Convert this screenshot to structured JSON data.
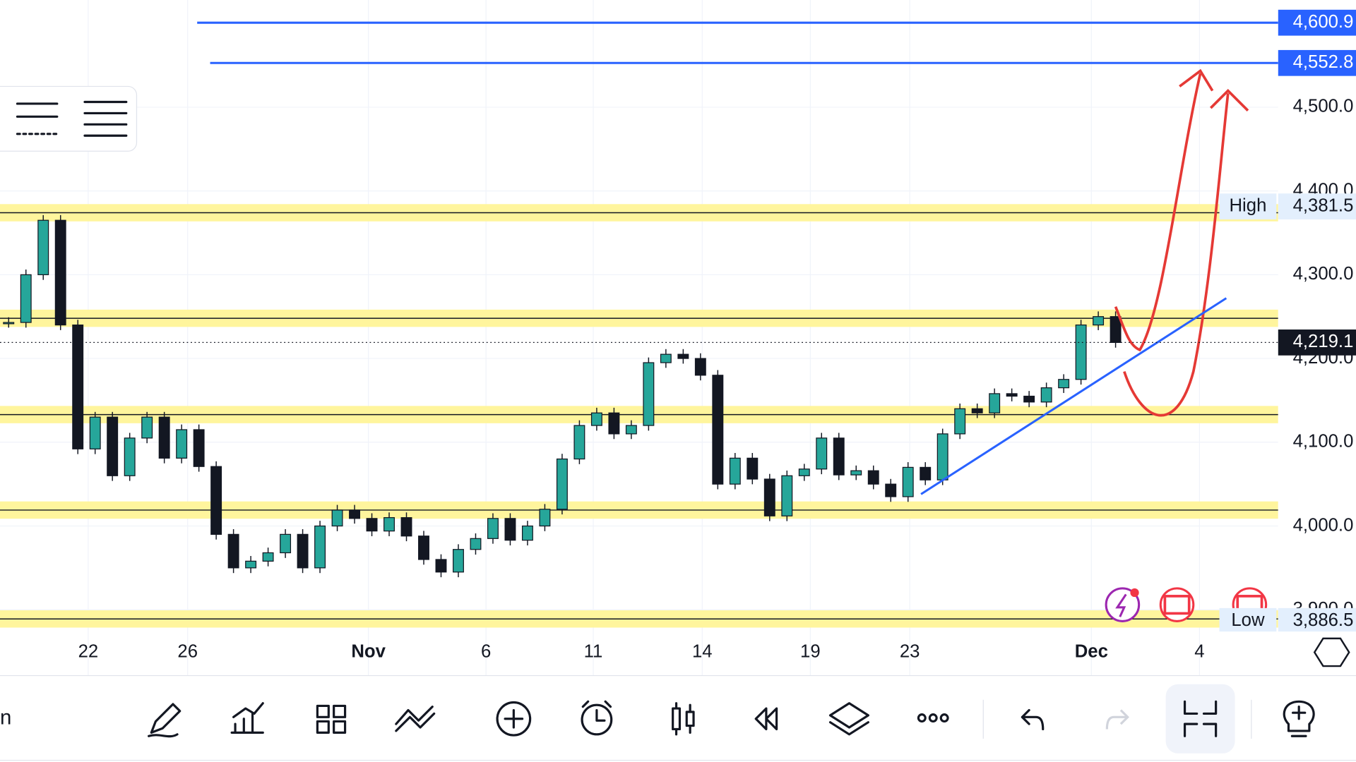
{
  "chart_data": {
    "type": "candlestick",
    "values": [
      4243,
      4300,
      4365,
      4240,
      4092,
      4130,
      4060,
      4105,
      4130,
      4081,
      4115,
      4071,
      3990,
      3950,
      3958,
      3968,
      3990,
      3950,
      4000,
      4019,
      4009,
      3994,
      4010,
      3988,
      3960,
      3945,
      3972,
      3985,
      4009,
      3983,
      4000,
      4020,
      4080,
      4120,
      4135,
      4110,
      4120,
      4195,
      4205,
      4200,
      4180,
      4050,
      4081,
      4056,
      4012,
      4060,
      4068,
      4105,
      4061,
      4066,
      4050,
      4035,
      4070,
      4055,
      4110,
      4140,
      4135,
      4158,
      4155,
      4148,
      4165,
      4175,
      4240,
      4250,
      4219.1
    ],
    "up_color": "#26a69a",
    "down_color": "#131722",
    "xlim": [
      -0.5,
      73.4
    ],
    "xticks": [
      {
        "value": 4.6,
        "label": "22"
      },
      {
        "value": 10.35,
        "label": "26"
      },
      {
        "value": 20.8,
        "label": "Nov"
      },
      {
        "value": 27.6,
        "label": "6"
      },
      {
        "value": 33.8,
        "label": "11"
      },
      {
        "value": 40.1,
        "label": "14"
      },
      {
        "value": 46.35,
        "label": "19"
      },
      {
        "value": 52.1,
        "label": "23"
      },
      {
        "value": 62.6,
        "label": "Dec"
      },
      {
        "value": 68.85,
        "label": "4"
      }
    ],
    "ylim": [
      3875,
      4628
    ],
    "yticks": [
      {
        "value": 4500,
        "label": "4,500.0"
      },
      {
        "value": 4400,
        "label": "4,400.0"
      },
      {
        "value": 4300,
        "label": "4,300.0"
      },
      {
        "value": 4200,
        "label": "4,200.0"
      },
      {
        "value": 4100,
        "label": "4,100.0"
      },
      {
        "value": 4000,
        "label": "4,000.0"
      },
      {
        "value": 3900,
        "label": "3,900.0"
      }
    ],
    "grid": true,
    "zones": [
      4374,
      4248,
      4133,
      4019,
      3889
    ],
    "zone_color": "#fff59d",
    "rays": [
      {
        "value": 4600.9,
        "label": "4,600.9",
        "start": 10.9
      },
      {
        "value": 4552.8,
        "label": "4,552.8",
        "start": 11.65
      }
    ],
    "ray_color": "#2962ff",
    "trendline": {
      "x": [
        52.75,
        70.4
      ],
      "y": [
        4038,
        4272
      ],
      "color": "#2962ff"
    },
    "high": {
      "tag": "High",
      "value": 4381.5,
      "label": "4,381.5"
    },
    "low": {
      "tag": "Low",
      "value": 3886.5,
      "label": "3,886.5"
    },
    "last": {
      "value": 4219.1,
      "label": "4,219.1"
    }
  },
  "toolbar": {
    "left_label": "n"
  }
}
